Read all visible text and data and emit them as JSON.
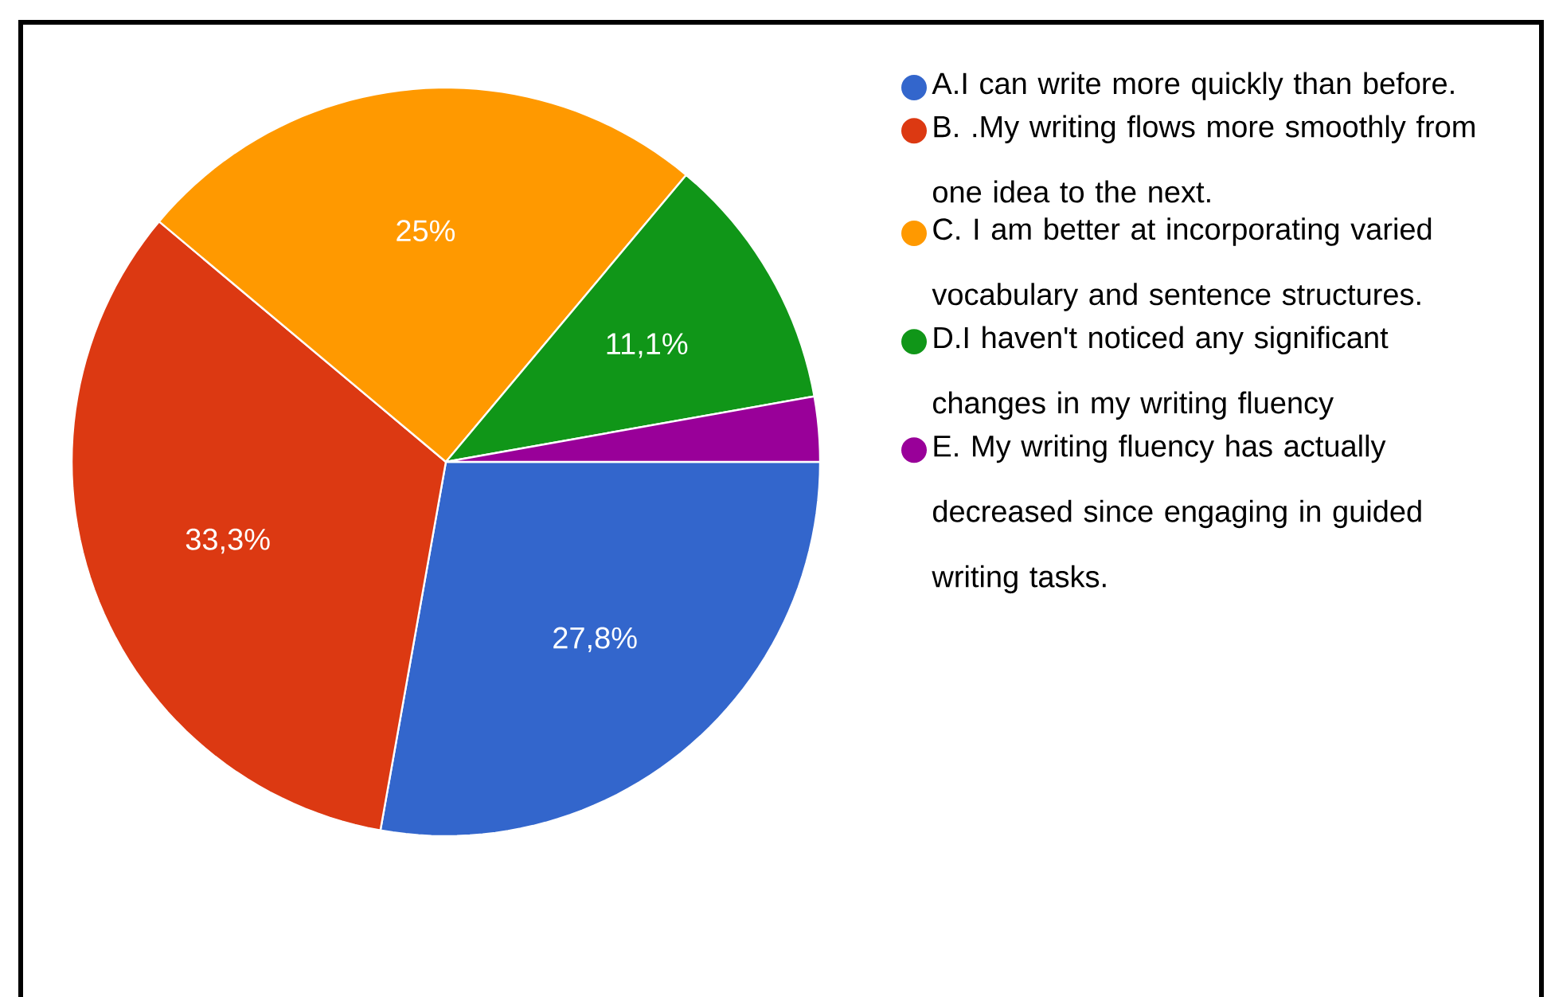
{
  "chart_data": {
    "type": "pie",
    "categories": [
      "A.I can write more quickly than before.",
      "B. .My writing flows more smoothly from one idea to the next.",
      "C. I am better at incorporating varied vocabulary and sentence structures.",
      "D.I haven't noticed any significant changes in my writing fluency",
      "E. My writing fluency has actually decreased since engaging in guided writing tasks."
    ],
    "values": [
      27.8,
      33.3,
      25,
      11.1,
      2.8
    ],
    "value_labels": [
      "27,8%",
      "33,3%",
      "25%",
      "11,1%",
      null
    ],
    "colors": [
      "#3366cc",
      "#dc3912",
      "#ff9900",
      "#109618",
      "#990099"
    ],
    "legend": "right"
  }
}
